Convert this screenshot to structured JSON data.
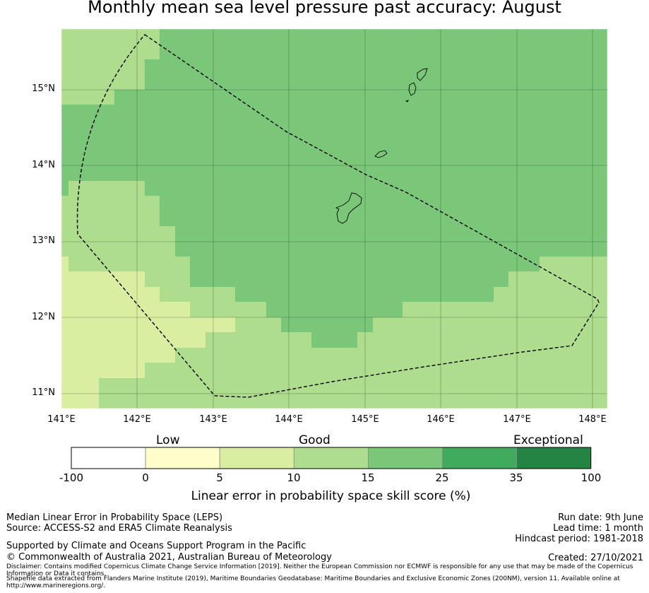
{
  "title": "Monthly mean sea level pressure past accuracy: August",
  "map": {
    "lon_range": [
      141.0,
      148.2
    ],
    "lat_range": [
      10.8,
      15.8
    ],
    "lat_ticks": [
      "15°N",
      "14°N",
      "13°N",
      "12°N",
      "11°N"
    ],
    "lon_ticks": [
      "141°E",
      "142°E",
      "143°E",
      "144°E",
      "145°E",
      "146°E",
      "147°E",
      "148°E"
    ],
    "colors": {
      "10-15": "#aedd8e",
      "15-25": "#7bc77a",
      "5-10": "#d9eea0"
    },
    "boundary_style": "dashed black line (EEZ)"
  },
  "colorbar": {
    "categories": [
      {
        "label": "Low"
      },
      {
        "label": "Good"
      },
      {
        "label": "Exceptional"
      }
    ],
    "ticks": [
      "-100",
      "0",
      "5",
      "10",
      "15",
      "25",
      "35",
      "100"
    ],
    "segment_colors": [
      "#ffffff",
      "#ffffcc",
      "#d9eea0",
      "#aedd8e",
      "#7bc77a",
      "#41ab5d",
      "#238443"
    ],
    "label": "Linear error in probability space skill score (%)"
  },
  "footer": {
    "left_line1": "Median Linear Error in Probability Space (LEPS)",
    "left_line2": "Source: ACCESS-S2 and ERA5 Climate Reanalysis",
    "supported": "Supported by Climate and Oceans Support Program in the Pacific",
    "copyright": "© Commonwealth of Australia 2021, Australian Bureau of Meteorology",
    "run_date": "Run date: 9th June",
    "lead_time": "Lead time: 1 month",
    "hindcast": "Hindcast period: 1981-2018",
    "created": "Created: 27/10/2021",
    "disclaimer": "Disclaimer: Contains modified Copernicus Climate Change Service Information [2019]. Neither the European Commission nor ECMWF is responsible for any use that may be made of the Copernicus Information or Data it contains.",
    "shapefile": "Shapefile data extracted from Flanders Marine Institute (2019), Maritime Boundaries Geodatabase: Maritime Boundaries and Exclusive Economic Zones (200NM), version 11. Available online at http://www.marineregions.org/."
  }
}
